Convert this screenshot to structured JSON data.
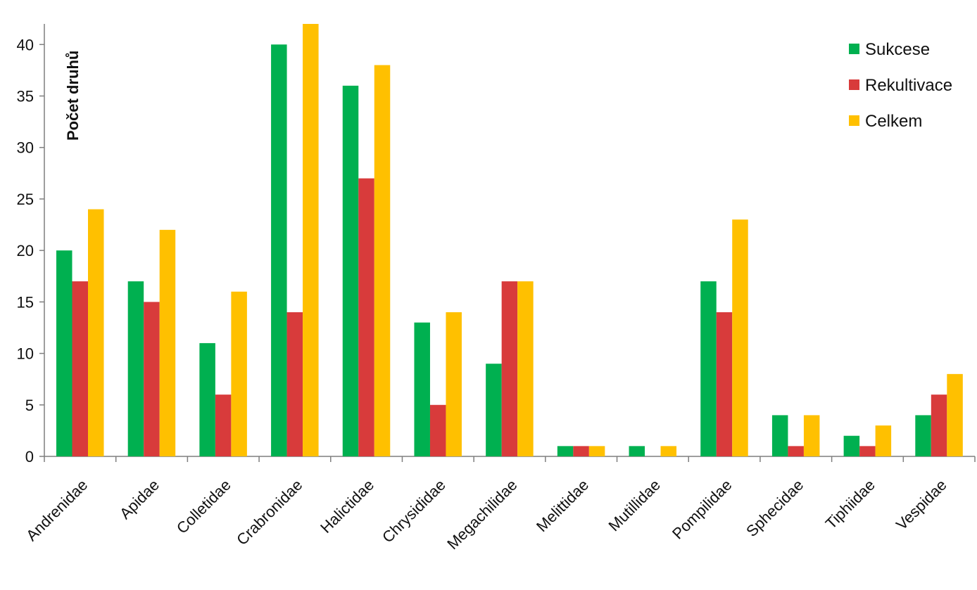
{
  "chart_data": {
    "type": "bar",
    "categories": [
      "Andrenidae",
      "Apidae",
      "Colletidae",
      "Crabronidae",
      "Halictidae",
      "Chrysididae",
      "Megachilidae",
      "Melittidae",
      "Mutillidae",
      "Pompilidae",
      "Sphecidae",
      "Tiphiidae",
      "Vespidae"
    ],
    "series": [
      {
        "name": "Sukcese",
        "color": "#00b050",
        "values": [
          20,
          17,
          11,
          40,
          36,
          13,
          9,
          1,
          1,
          17,
          4,
          2,
          4
        ]
      },
      {
        "name": "Rekultivace",
        "color": "#d83b3b",
        "values": [
          17,
          15,
          6,
          14,
          27,
          5,
          17,
          1,
          0,
          14,
          1,
          1,
          6
        ]
      },
      {
        "name": "Celkem",
        "color": "#ffc000",
        "values": [
          24,
          22,
          16,
          42,
          38,
          14,
          17,
          1,
          1,
          23,
          4,
          3,
          8
        ]
      }
    ],
    "ylabel": "Počet druhů",
    "xlabel": "",
    "ylim": [
      0,
      42
    ],
    "yticks": [
      0,
      5,
      10,
      15,
      20,
      25,
      30,
      35,
      40
    ],
    "grid": false,
    "legend_position": "top-right"
  }
}
